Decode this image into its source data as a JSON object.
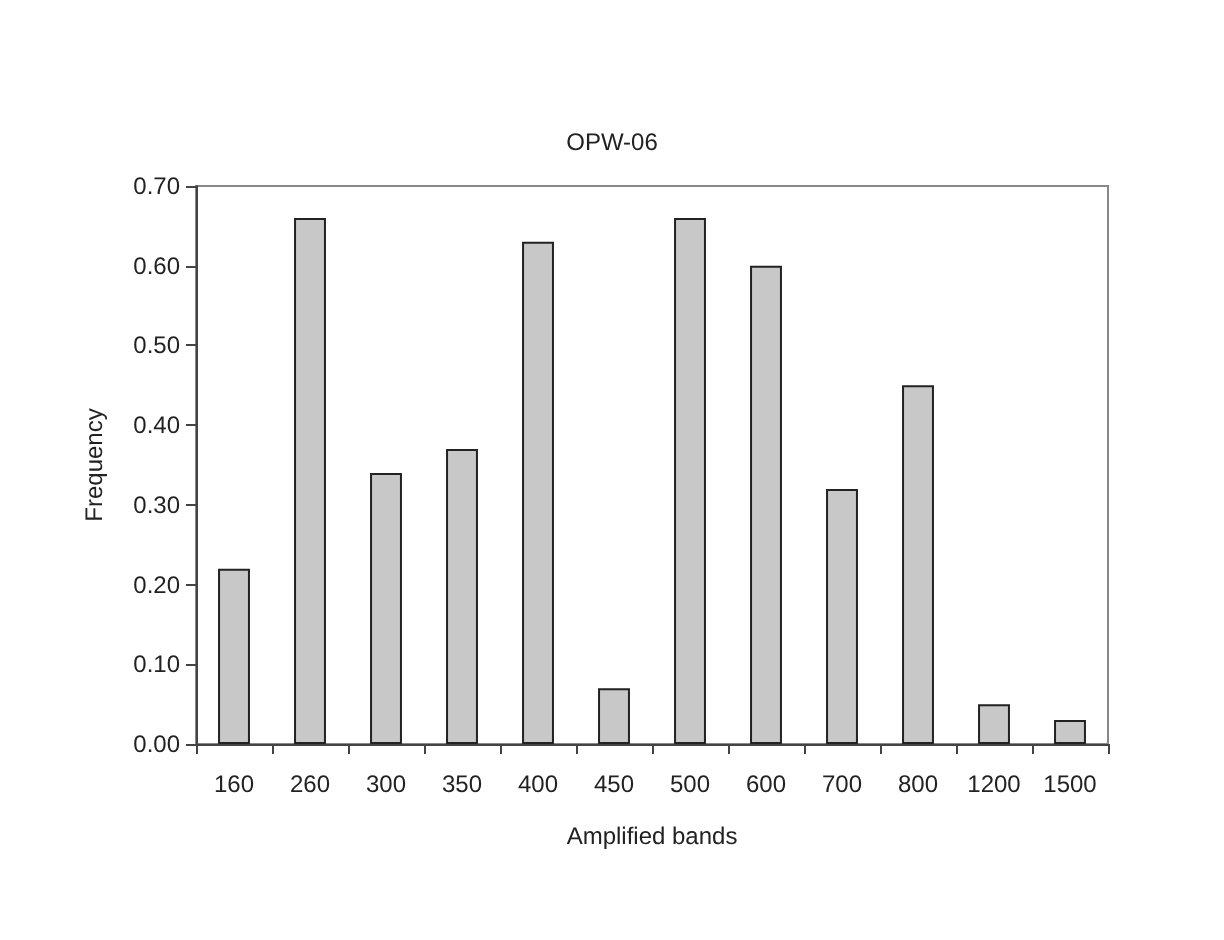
{
  "chart_data": {
    "type": "bar",
    "title": "OPW-06",
    "xlabel": "Amplified bands",
    "ylabel": "Frequency",
    "categories": [
      "160",
      "260",
      "300",
      "350",
      "400",
      "450",
      "500",
      "600",
      "700",
      "800",
      "1200",
      "1500"
    ],
    "values": [
      0.22,
      0.66,
      0.34,
      0.37,
      0.63,
      0.07,
      0.66,
      0.6,
      0.32,
      0.45,
      0.05,
      0.03
    ],
    "color": "#c8c8c8",
    "ylim": [
      0,
      0.7
    ],
    "yticks": [
      {
        "value": 0,
        "label": "0.00"
      },
      {
        "value": 0.1,
        "label": "0.10"
      },
      {
        "value": 0.2,
        "label": "0.20"
      },
      {
        "value": 0.3,
        "label": "0.30"
      },
      {
        "value": 0.4,
        "label": "0.40"
      },
      {
        "value": 0.5,
        "label": "0.50"
      },
      {
        "value": 0.6,
        "label": "0.60"
      },
      {
        "value": 0.7,
        "label": "0.70"
      }
    ],
    "grid": false
  }
}
